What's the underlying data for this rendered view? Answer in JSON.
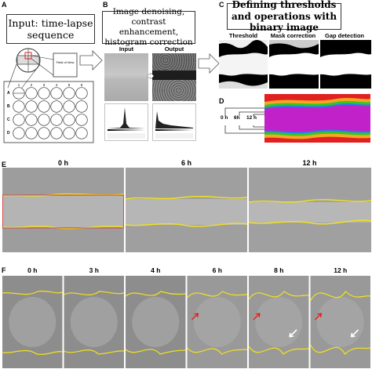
{
  "panels": {
    "A": {
      "letter": "A",
      "title": "Input: time-lapse sequence",
      "fov_label": "Field of View",
      "rows": [
        "A",
        "B",
        "C",
        "D"
      ],
      "cols": [
        "1",
        "2",
        "3",
        "4",
        "5",
        "6"
      ]
    },
    "B": {
      "letter": "B",
      "title": "Image denoising, contrast enhancement, histogram correction",
      "input_label": "Input",
      "output_label": "Output"
    },
    "C": {
      "letter": "C",
      "title": "Defining thresholds and operations with binary image",
      "threshold_label": "Threshold",
      "mask_label": "Mask correction",
      "gap_label": "Gap detection"
    },
    "D": {
      "letter": "D",
      "times": [
        "0 h",
        "6h",
        "12 h"
      ]
    },
    "E": {
      "letter": "E",
      "times": [
        "0 h",
        "6 h",
        "12 h"
      ]
    },
    "F": {
      "letter": "F",
      "times": [
        "0 h",
        "3 h",
        "4 h",
        "6 h",
        "8 h",
        "12 h"
      ]
    }
  },
  "colors": {
    "yellow": "#f2e21b",
    "red": "#e0211f",
    "magenta": "#c021c8",
    "green": "#34c629",
    "white": "#ffffff"
  }
}
